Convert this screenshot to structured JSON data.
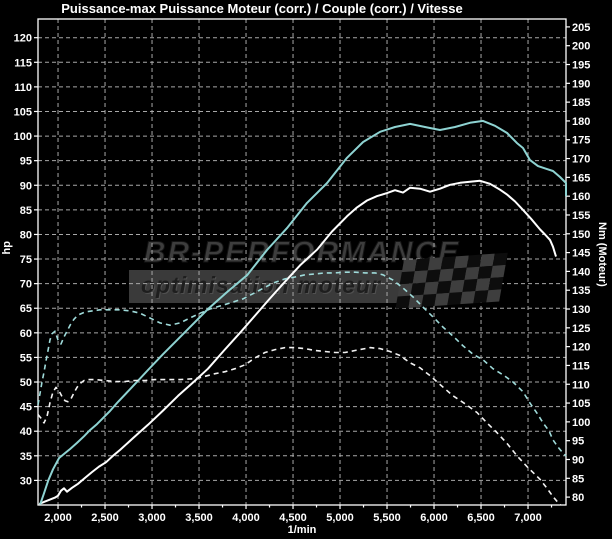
{
  "title": "Puissance-max Puissance Moteur (corr.) / Couple (corr.) / Vitesse",
  "watermark": {
    "brand": "BR-PERFORMANCE",
    "tagline": "optimisation moteur",
    "flag_icon": "checkered-flag",
    "brand_color": "#3d3d3d",
    "band_color": "#3a3a3a"
  },
  "chart_data": {
    "type": "line",
    "title": "Puissance-max Puissance Moteur (corr.) / Couple (corr.) / Vitesse",
    "background": "#000000",
    "grid": {
      "on": true,
      "color": "#a8a8a8",
      "dashed": true
    },
    "legend": "none",
    "x_axis": {
      "label": "1/min",
      "min": 1787,
      "max": 7404,
      "ticks": [
        {
          "v": 2000,
          "label": "2,000"
        },
        {
          "v": 2500,
          "label": "2,500"
        },
        {
          "v": 3000,
          "label": "3,000"
        },
        {
          "v": 3500,
          "label": "3,500"
        },
        {
          "v": 4000,
          "label": "4,000"
        },
        {
          "v": 4500,
          "label": "4,500"
        },
        {
          "v": 5000,
          "label": "5,000"
        },
        {
          "v": 5500,
          "label": "5,500"
        },
        {
          "v": 6000,
          "label": "6,000"
        },
        {
          "v": 6500,
          "label": "6,500"
        },
        {
          "v": 7000,
          "label": "7,000"
        }
      ],
      "minor_tick_step": 250
    },
    "y_left": {
      "label": "hp",
      "min": 25,
      "max": 123.8,
      "tick_min": 30,
      "tick_max": 120,
      "tick_step": 5
    },
    "y_right": {
      "label": "Nm (Moteur)",
      "min": 77.9,
      "max": 207.1,
      "tick_min": 80,
      "tick_max": 205,
      "tick_step": 5
    },
    "series": [
      {
        "name": "puissance-moteur-corr-solid",
        "axis": "left",
        "unit": "hp",
        "style": "solid",
        "color": "#ffffff",
        "width": 2,
        "peak": 91,
        "points": [
          [
            1800,
            25.2
          ],
          [
            1860,
            25.7
          ],
          [
            1915,
            26.1
          ],
          [
            1968,
            26.5
          ],
          [
            2000,
            26.9
          ],
          [
            2032,
            27.9
          ],
          [
            2064,
            28.4
          ],
          [
            2096,
            27.7
          ],
          [
            2149,
            28.5
          ],
          [
            2213,
            29.3
          ],
          [
            2287,
            30.5
          ],
          [
            2362,
            31.7
          ],
          [
            2436,
            32.8
          ],
          [
            2511,
            33.7
          ],
          [
            2585,
            35.0
          ],
          [
            2660,
            36.2
          ],
          [
            2798,
            38.6
          ],
          [
            2957,
            41.3
          ],
          [
            3117,
            44.2
          ],
          [
            3277,
            47.2
          ],
          [
            3436,
            49.9
          ],
          [
            3596,
            52.7
          ],
          [
            3766,
            56.4
          ],
          [
            3936,
            60.0
          ],
          [
            4096,
            63.5
          ],
          [
            4255,
            67.0
          ],
          [
            4415,
            70.4
          ],
          [
            4574,
            73.7
          ],
          [
            4755,
            76.9
          ],
          [
            4915,
            80.6
          ],
          [
            5074,
            83.7
          ],
          [
            5181,
            85.5
          ],
          [
            5287,
            86.9
          ],
          [
            5394,
            87.8
          ],
          [
            5500,
            88.4
          ],
          [
            5585,
            89.0
          ],
          [
            5670,
            88.5
          ],
          [
            5745,
            89.5
          ],
          [
            5851,
            89.3
          ],
          [
            5957,
            88.7
          ],
          [
            6064,
            89.3
          ],
          [
            6170,
            90.1
          ],
          [
            6277,
            90.5
          ],
          [
            6383,
            90.7
          ],
          [
            6489,
            90.9
          ],
          [
            6596,
            90.3
          ],
          [
            6702,
            89.1
          ],
          [
            6777,
            88.1
          ],
          [
            6862,
            86.7
          ],
          [
            6947,
            85.0
          ],
          [
            7032,
            83.2
          ],
          [
            7128,
            81.0
          ],
          [
            7181,
            80.0
          ],
          [
            7234,
            78.9
          ],
          [
            7266,
            77.5
          ],
          [
            7298,
            75.5
          ]
        ]
      },
      {
        "name": "couple-corr-solid",
        "axis": "right",
        "unit": "Nm",
        "style": "solid",
        "color": "#8ed3d2",
        "width": 2,
        "peak": 180,
        "points": [
          [
            1809,
            78
          ],
          [
            1851,
            81
          ],
          [
            1894,
            84.3
          ],
          [
            1947,
            87.4
          ],
          [
            2011,
            90.4
          ],
          [
            2074,
            91.7
          ],
          [
            2128,
            92.8
          ],
          [
            2202,
            94.4
          ],
          [
            2277,
            96.2
          ],
          [
            2340,
            97.8
          ],
          [
            2415,
            99.4
          ],
          [
            2479,
            101
          ],
          [
            2553,
            102.9
          ],
          [
            2638,
            105.3
          ],
          [
            2798,
            109.5
          ],
          [
            2957,
            113.8
          ],
          [
            3117,
            118
          ],
          [
            3277,
            122
          ],
          [
            3436,
            126
          ],
          [
            3596,
            130
          ],
          [
            3798,
            134.5
          ],
          [
            4011,
            139
          ],
          [
            4223,
            145.7
          ],
          [
            4436,
            151.5
          ],
          [
            4649,
            158.2
          ],
          [
            4862,
            163.5
          ],
          [
            5074,
            170.2
          ],
          [
            5245,
            174.4
          ],
          [
            5426,
            177.1
          ],
          [
            5585,
            178.4
          ],
          [
            5745,
            179.2
          ],
          [
            5904,
            178.4
          ],
          [
            6064,
            177.6
          ],
          [
            6223,
            178.4
          ],
          [
            6383,
            179.5
          ],
          [
            6521,
            180
          ],
          [
            6649,
            178.7
          ],
          [
            6777,
            176.8
          ],
          [
            6883,
            174.1
          ],
          [
            6947,
            172.8
          ],
          [
            7021,
            169.6
          ],
          [
            7106,
            168
          ],
          [
            7202,
            167.2
          ],
          [
            7266,
            166.7
          ],
          [
            7340,
            165.1
          ],
          [
            7404,
            163.5
          ],
          [
            7404,
            160
          ]
        ]
      },
      {
        "name": "couple-origine-dashed",
        "axis": "right",
        "unit": "Nm",
        "style": "dashed",
        "color": "#9fdbda",
        "width": 1.6,
        "peak": 140,
        "points": [
          [
            1787,
            104.5
          ],
          [
            1809,
            107.7
          ],
          [
            1830,
            110.6
          ],
          [
            1851,
            113.2
          ],
          [
            1872,
            116.2
          ],
          [
            1894,
            119.1
          ],
          [
            1915,
            121.8
          ],
          [
            1936,
            123.4
          ],
          [
            1968,
            124.1
          ],
          [
            2000,
            121.8
          ],
          [
            2032,
            120.7
          ],
          [
            2064,
            122.6
          ],
          [
            2096,
            124.1
          ],
          [
            2128,
            125.7
          ],
          [
            2170,
            127.3
          ],
          [
            2213,
            128.4
          ],
          [
            2287,
            129.2
          ],
          [
            2362,
            129.5
          ],
          [
            2447,
            129.8
          ],
          [
            2553,
            129.8
          ],
          [
            2660,
            129.8
          ],
          [
            2766,
            129.5
          ],
          [
            2872,
            128.9
          ],
          [
            2979,
            127.6
          ],
          [
            3085,
            126.3
          ],
          [
            3191,
            125.7
          ],
          [
            3298,
            126.3
          ],
          [
            3404,
            127.6
          ],
          [
            3511,
            128.9
          ],
          [
            3617,
            130.0
          ],
          [
            3723,
            130.8
          ],
          [
            3830,
            131.6
          ],
          [
            3968,
            132.7
          ],
          [
            4128,
            134.8
          ],
          [
            4287,
            136.9
          ],
          [
            4415,
            138.0
          ],
          [
            4521,
            138.5
          ],
          [
            4628,
            139.1
          ],
          [
            4734,
            139.3
          ],
          [
            4840,
            139.6
          ],
          [
            4947,
            139.6
          ],
          [
            5053,
            139.8
          ],
          [
            5160,
            139.8
          ],
          [
            5266,
            139.6
          ],
          [
            5372,
            139.6
          ],
          [
            5457,
            139.1
          ],
          [
            5564,
            137.7
          ],
          [
            5670,
            135.6
          ],
          [
            5777,
            133.2
          ],
          [
            5883,
            130.5
          ],
          [
            5989,
            127.9
          ],
          [
            6096,
            125.2
          ],
          [
            6202,
            122.8
          ],
          [
            6309,
            120.2
          ],
          [
            6415,
            118.0
          ],
          [
            6521,
            116.5
          ],
          [
            6628,
            114.1
          ],
          [
            6734,
            112.5
          ],
          [
            6840,
            110.6
          ],
          [
            6947,
            108.0
          ],
          [
            7021,
            105.0
          ],
          [
            7096,
            102.3
          ],
          [
            7160,
            99.7
          ],
          [
            7223,
            97.6
          ],
          [
            7266,
            95.2
          ],
          [
            7319,
            93.3
          ],
          [
            7372,
            91.7
          ],
          [
            7404,
            90.9
          ]
        ]
      },
      {
        "name": "puissance-origine-dashed",
        "axis": "left",
        "unit": "hp",
        "style": "dashed",
        "color": "#f2f2f2",
        "width": 1.6,
        "peak": 57,
        "points": [
          [
            1787,
            43.4
          ],
          [
            1830,
            42.4
          ],
          [
            1851,
            41.7
          ],
          [
            1883,
            43.0
          ],
          [
            1915,
            45.8
          ],
          [
            1947,
            48.0
          ],
          [
            1979,
            48.9
          ],
          [
            2011,
            48.2
          ],
          [
            2043,
            47.0
          ],
          [
            2074,
            46.2
          ],
          [
            2106,
            46.0
          ],
          [
            2138,
            46.6
          ],
          [
            2170,
            47.8
          ],
          [
            2202,
            48.9
          ],
          [
            2234,
            49.7
          ],
          [
            2277,
            50.3
          ],
          [
            2319,
            50.5
          ],
          [
            2394,
            50.5
          ],
          [
            2500,
            50.3
          ],
          [
            2606,
            50.1
          ],
          [
            2713,
            50.1
          ],
          [
            2819,
            50.3
          ],
          [
            2926,
            50.3
          ],
          [
            3032,
            50.5
          ],
          [
            3138,
            50.5
          ],
          [
            3298,
            50.5
          ],
          [
            3457,
            50.7
          ],
          [
            3511,
            50.9
          ],
          [
            3670,
            51.7
          ],
          [
            3777,
            52.1
          ],
          [
            3883,
            52.7
          ],
          [
            3989,
            53.5
          ],
          [
            4096,
            54.9
          ],
          [
            4202,
            56.0
          ],
          [
            4309,
            56.6
          ],
          [
            4415,
            57.0
          ],
          [
            4521,
            57.0
          ],
          [
            4628,
            56.8
          ],
          [
            4734,
            56.4
          ],
          [
            4840,
            56.2
          ],
          [
            4947,
            56.0
          ],
          [
            5053,
            56.0
          ],
          [
            5160,
            56.4
          ],
          [
            5266,
            56.8
          ],
          [
            5319,
            57.0
          ],
          [
            5426,
            56.8
          ],
          [
            5532,
            56.2
          ],
          [
            5638,
            55.4
          ],
          [
            5745,
            53.9
          ],
          [
            5851,
            52.9
          ],
          [
            5957,
            51.3
          ],
          [
            6064,
            49.5
          ],
          [
            6202,
            47.2
          ],
          [
            6330,
            45.6
          ],
          [
            6457,
            43.8
          ],
          [
            6564,
            41.7
          ],
          [
            6670,
            39.7
          ],
          [
            6777,
            37.5
          ],
          [
            6883,
            35.0
          ],
          [
            6989,
            32.8
          ],
          [
            7128,
            30.2
          ],
          [
            7202,
            28.4
          ],
          [
            7266,
            26.7
          ],
          [
            7319,
            25.5
          ],
          [
            7345,
            25.0
          ]
        ]
      }
    ]
  }
}
